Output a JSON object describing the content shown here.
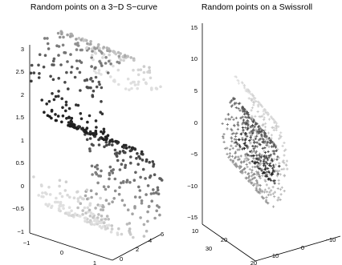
{
  "chart_data": [
    {
      "type": "scatter",
      "title": "Random points on a 3−D S−curve",
      "marker": "dot",
      "color_scale": [
        "#1e1e1e",
        "#e0e0e0"
      ],
      "z_ticks": [
        "−1",
        "−0.5",
        "0",
        "0.5",
        "1",
        "1.5",
        "2",
        "2.5",
        "3"
      ],
      "x_ticks": [
        "−1",
        "0",
        "1"
      ],
      "y_ticks": [
        "0",
        "2",
        "4",
        "6"
      ],
      "xlim": [
        -1,
        1
      ],
      "ylim": [
        0,
        6
      ],
      "zlim": [
        -1,
        3
      ]
    },
    {
      "type": "scatter",
      "title": "Random points on a Swissroll",
      "marker": "plus",
      "color_scale": [
        "#1e1e1e",
        "#e0e0e0"
      ],
      "z_ticks": [
        "−15",
        "−10",
        "−5",
        "0",
        "5",
        "10",
        "15"
      ],
      "x_ticks": [
        "30",
        "20",
        "10"
      ],
      "y_ticks": [
        "20",
        "10",
        "0",
        "−10"
      ],
      "xlim": [
        0,
        30
      ],
      "ylim": [
        -10,
        20
      ],
      "zlim": [
        -15,
        15
      ]
    }
  ]
}
